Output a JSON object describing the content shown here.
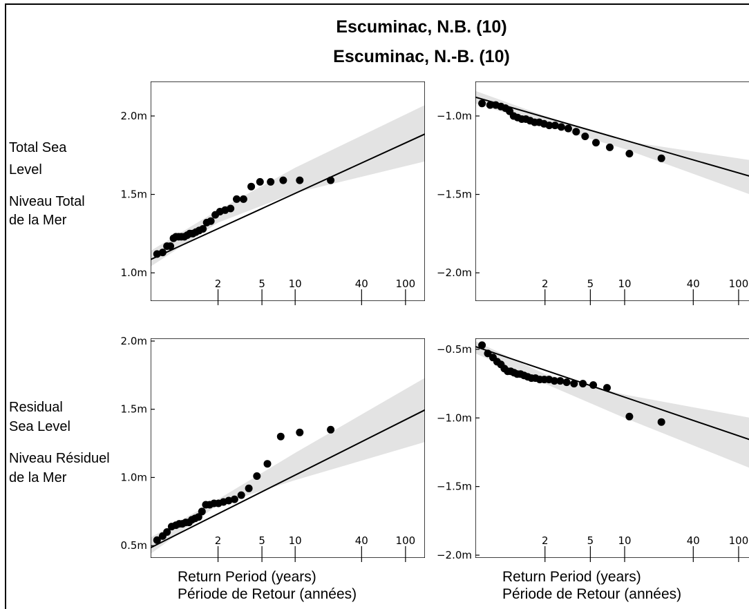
{
  "title": "Escuminac, N.B. (10)",
  "subtitle": "Escuminac, N.-B. (10)",
  "row_labels": {
    "total_en_1": "Total Sea",
    "total_en_2": "Level",
    "total_fr_1": "Niveau Total",
    "total_fr_2": "de la Mer",
    "residual_en_1": "Residual",
    "residual_en_2": "Sea Level",
    "residual_fr_1": "Niveau Résiduel",
    "residual_fr_2": "de la Mer"
  },
  "xlabel_en": "Return Period (years)",
  "xlabel_fr": "Période de Retour (années)",
  "colors": {
    "band": "#e3e3e3",
    "line": "#000000",
    "points": "#000000"
  },
  "chart_data": [
    {
      "id": "total-max",
      "type": "scatter",
      "xscale": "log",
      "xlim": [
        0.49,
        150
      ],
      "ylim": [
        0.82,
        2.22
      ],
      "xticks": [
        2,
        5,
        10,
        40,
        100
      ],
      "yticks": [
        {
          "v": 1.0,
          "label": "1.0m"
        },
        {
          "v": 1.5,
          "label": "1.5m"
        },
        {
          "v": 2.0,
          "label": "2.0m"
        }
      ],
      "fit": {
        "x": [
          0.49,
          150
        ],
        "y": [
          1.085,
          1.885
        ]
      },
      "band": {
        "x": [
          0.49,
          2,
          10,
          150
        ],
        "upper": [
          1.14,
          1.4,
          1.67,
          2.07
        ],
        "lower": [
          1.04,
          1.32,
          1.51,
          1.71
        ]
      },
      "points": {
        "x": [
          0.56,
          0.63,
          0.69,
          0.74,
          0.79,
          0.83,
          0.88,
          0.93,
          0.99,
          1.05,
          1.11,
          1.18,
          1.26,
          1.35,
          1.46,
          1.58,
          1.72,
          1.89,
          2.08,
          2.32,
          2.6,
          2.95,
          3.4,
          4.0,
          4.8,
          6.0,
          7.8,
          11.0,
          21.0
        ],
        "y": [
          1.12,
          1.13,
          1.17,
          1.17,
          1.22,
          1.23,
          1.23,
          1.23,
          1.23,
          1.24,
          1.25,
          1.25,
          1.26,
          1.27,
          1.28,
          1.32,
          1.33,
          1.37,
          1.39,
          1.4,
          1.41,
          1.47,
          1.47,
          1.55,
          1.58,
          1.58,
          1.59,
          1.59,
          1.59
        ]
      }
    },
    {
      "id": "total-min",
      "type": "scatter",
      "xscale": "log",
      "xlim": [
        0.49,
        150
      ],
      "ylim": [
        -2.18,
        -0.78
      ],
      "xticks": [
        2,
        5,
        10,
        40,
        100
      ],
      "yticks": [
        {
          "v": -2.0,
          "label": "-2.0m"
        },
        {
          "v": -1.5,
          "label": "-1.5m"
        },
        {
          "v": -1.0,
          "label": "-1.0m"
        }
      ],
      "fit": {
        "x": [
          0.49,
          150
        ],
        "y": [
          -0.88,
          -1.4
        ]
      },
      "band": {
        "x": [
          0.49,
          2,
          10,
          150
        ],
        "upper": [
          -0.84,
          -1.0,
          -1.16,
          -1.29
        ],
        "lower": [
          -0.92,
          -1.06,
          -1.21,
          -1.52
        ]
      },
      "points": {
        "x": [
          0.56,
          0.66,
          0.74,
          0.82,
          0.9,
          0.98,
          1.06,
          1.15,
          1.25,
          1.36,
          1.48,
          1.62,
          1.78,
          1.96,
          2.18,
          2.45,
          2.78,
          3.2,
          3.75,
          4.5,
          5.6,
          7.4,
          11.0,
          21.0
        ],
        "y": [
          -0.92,
          -0.93,
          -0.93,
          -0.94,
          -0.95,
          -0.97,
          -1.0,
          -1.01,
          -1.02,
          -1.02,
          -1.03,
          -1.04,
          -1.04,
          -1.05,
          -1.06,
          -1.06,
          -1.07,
          -1.08,
          -1.1,
          -1.13,
          -1.17,
          -1.2,
          -1.24,
          -1.27
        ]
      }
    },
    {
      "id": "residual-max",
      "type": "scatter",
      "xscale": "log",
      "xlim": [
        0.49,
        150
      ],
      "ylim": [
        0.41,
        2.02
      ],
      "xticks": [
        2,
        5,
        10,
        40,
        100
      ],
      "yticks": [
        {
          "v": 0.5,
          "label": "0.5m"
        },
        {
          "v": 1.0,
          "label": "1.0m"
        },
        {
          "v": 1.5,
          "label": "1.5m"
        },
        {
          "v": 2.0,
          "label": "2.0m"
        }
      ],
      "fit": {
        "x": [
          0.49,
          150
        ],
        "y": [
          0.485,
          1.495
        ]
      },
      "band": {
        "x": [
          0.49,
          2,
          10,
          150
        ],
        "upper": [
          0.56,
          0.84,
          1.18,
          1.73
        ],
        "lower": [
          0.44,
          0.8,
          0.98,
          1.26
        ]
      },
      "points": {
        "x": [
          0.56,
          0.63,
          0.69,
          0.76,
          0.83,
          0.89,
          0.95,
          1.02,
          1.09,
          1.16,
          1.24,
          1.33,
          1.43,
          1.55,
          1.68,
          1.84,
          2.02,
          2.24,
          2.5,
          2.82,
          3.25,
          3.8,
          4.5,
          5.6,
          7.4,
          11.0,
          21.0
        ],
        "y": [
          0.54,
          0.57,
          0.6,
          0.64,
          0.65,
          0.66,
          0.66,
          0.67,
          0.67,
          0.69,
          0.7,
          0.71,
          0.75,
          0.8,
          0.8,
          0.81,
          0.81,
          0.82,
          0.83,
          0.84,
          0.87,
          0.92,
          1.01,
          1.1,
          1.3,
          1.33,
          1.35
        ]
      }
    },
    {
      "id": "residual-min",
      "type": "scatter",
      "xscale": "log",
      "xlim": [
        0.49,
        150
      ],
      "ylim": [
        -2.02,
        -0.42
      ],
      "xticks": [
        2,
        5,
        10,
        40,
        100
      ],
      "yticks": [
        {
          "v": -2.0,
          "label": "-2.0m"
        },
        {
          "v": -1.5,
          "label": "-1.5m"
        },
        {
          "v": -1.0,
          "label": "-1.0m"
        },
        {
          "v": -0.5,
          "label": "-0.5m"
        }
      ],
      "fit": {
        "x": [
          0.49,
          150
        ],
        "y": [
          -0.48,
          -1.18
        ]
      },
      "band": {
        "x": [
          0.49,
          2,
          10,
          150
        ],
        "upper": [
          -0.44,
          -0.68,
          -0.83,
          -1.01
        ],
        "lower": [
          -0.53,
          -0.75,
          -1.0,
          -1.39
        ]
      },
      "points": {
        "x": [
          0.56,
          0.63,
          0.7,
          0.76,
          0.82,
          0.88,
          0.94,
          1.0,
          1.07,
          1.14,
          1.22,
          1.31,
          1.41,
          1.52,
          1.65,
          1.8,
          1.97,
          2.17,
          2.42,
          2.72,
          3.1,
          3.6,
          4.3,
          5.3,
          7.0,
          11.0,
          21.0
        ],
        "y": [
          -0.47,
          -0.53,
          -0.56,
          -0.59,
          -0.61,
          -0.64,
          -0.66,
          -0.66,
          -0.67,
          -0.68,
          -0.68,
          -0.69,
          -0.7,
          -0.71,
          -0.71,
          -0.72,
          -0.72,
          -0.72,
          -0.73,
          -0.73,
          -0.74,
          -0.75,
          -0.75,
          -0.76,
          -0.78,
          -0.99,
          -1.03
        ]
      }
    }
  ]
}
